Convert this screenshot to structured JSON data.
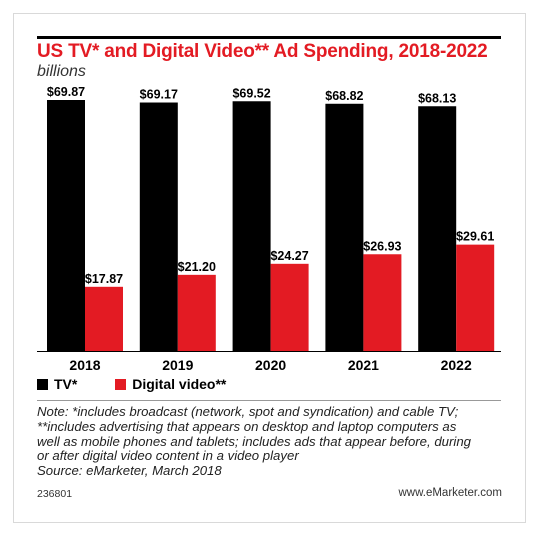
{
  "title": "US TV* and Digital Video** Ad Spending, 2018-2022",
  "subtitle": "billions",
  "note_lines": [
    "Note: *includes broadcast (network, spot and syndication) and cable TV;",
    "**includes advertising that appears on desktop and laptop computers as",
    "well as mobile phones and tablets; includes ads that appear before, during",
    "or after digital video content in a video player",
    "Source: eMarketer, March 2018"
  ],
  "chart_id": "236801",
  "brand": "www.eMarketer.com",
  "colors": {
    "tv": "#000000",
    "digital": "#e31b23",
    "title": "#e31b23"
  },
  "chart_data": {
    "type": "bar",
    "title": "US TV* and Digital Video** Ad Spending, 2018-2022",
    "subtitle": "billions",
    "categories": [
      "2018",
      "2019",
      "2020",
      "2021",
      "2022"
    ],
    "series": [
      {
        "name": "TV*",
        "values": [
          69.87,
          69.17,
          69.52,
          68.82,
          68.13
        ],
        "labels": [
          "$69.87",
          "$69.17",
          "$69.52",
          "$68.82",
          "$68.13"
        ]
      },
      {
        "name": "Digital video**",
        "values": [
          17.87,
          21.2,
          24.27,
          26.93,
          29.61
        ],
        "labels": [
          "$17.87",
          "$21.20",
          "$24.27",
          "$26.93",
          "$29.61"
        ]
      }
    ],
    "ylim": [
      0,
      69.87
    ],
    "grid": false,
    "legend": "bottom-left"
  }
}
